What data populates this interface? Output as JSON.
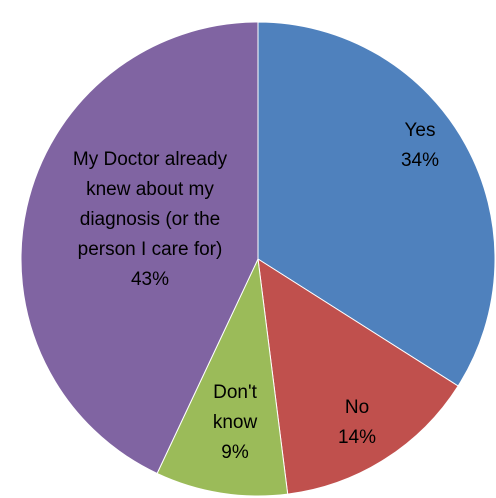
{
  "chart_data": {
    "type": "pie",
    "title": "",
    "start_angle_deg": 0,
    "direction": "clockwise",
    "legend": "none",
    "slices": [
      {
        "name": "Yes",
        "value": 34,
        "display": "34%",
        "label_lines": [
          "Yes",
          "34%"
        ],
        "color": "#4F81BD"
      },
      {
        "name": "No",
        "value": 14,
        "display": "14%",
        "label_lines": [
          "No",
          "14%"
        ],
        "color": "#C0504D"
      },
      {
        "name": "Don't know",
        "value": 9,
        "display": "9%",
        "label_lines": [
          "Don't",
          "know",
          "9%"
        ],
        "color": "#9BBB59"
      },
      {
        "name": "My Doctor already knew about my diagnosis (or the person I care for)",
        "value": 43,
        "display": "43%",
        "label_lines": [
          "My Doctor already",
          "knew about my",
          "diagnosis (or the",
          "person I care for)",
          "43%"
        ],
        "color": "#8064A2"
      }
    ]
  }
}
